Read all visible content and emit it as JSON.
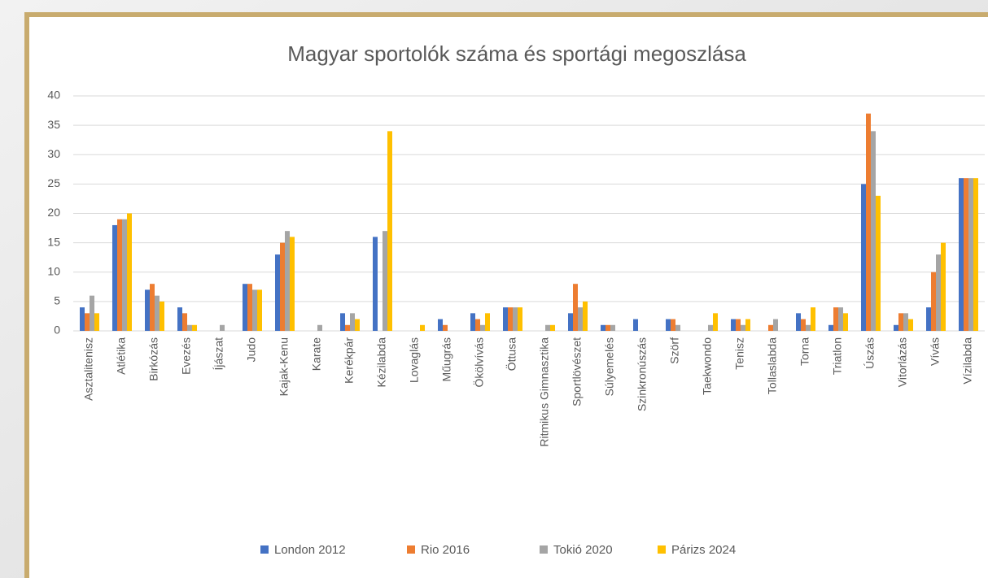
{
  "chart_data": {
    "type": "bar",
    "title": "Magyar sportolók száma és sportági megoszlása",
    "categories": [
      "Asztalitenisz",
      "Atlétika",
      "Birkózás",
      "Evezés",
      "Íjászat",
      "Judo",
      "Kajak-Kenu",
      "Karate",
      "Kerékpár",
      "Kézilabda",
      "Lovaglás",
      "Műugrás",
      "Ökölvívás",
      "Öttusa",
      "Ritmikus Gimnasztika",
      "Sportlövészet",
      "Súlyemelés",
      "Szinkronúszás",
      "Szörf",
      "Taekwondo",
      "Tenisz",
      "Tollaslabda",
      "Torna",
      "Triatlon",
      "Úszás",
      "Vitorlázás",
      "Vívás",
      "Vízilabda"
    ],
    "series": [
      {
        "name": "London 2012",
        "color": "#4472c4",
        "values": [
          4,
          18,
          7,
          4,
          0,
          8,
          13,
          0,
          3,
          16,
          0,
          2,
          3,
          4,
          0,
          3,
          1,
          2,
          2,
          0,
          2,
          0,
          3,
          1,
          25,
          1,
          4,
          26
        ]
      },
      {
        "name": "Rio 2016",
        "color": "#ed7d31",
        "values": [
          3,
          19,
          8,
          3,
          0,
          8,
          15,
          0,
          1,
          0,
          0,
          1,
          2,
          4,
          0,
          8,
          1,
          0,
          2,
          0,
          2,
          1,
          2,
          4,
          37,
          3,
          10,
          26
        ]
      },
      {
        "name": "Tokió 2020",
        "color": "#a5a5a5",
        "values": [
          6,
          19,
          6,
          1,
          1,
          7,
          17,
          1,
          3,
          17,
          0,
          0,
          1,
          4,
          1,
          4,
          1,
          0,
          1,
          1,
          1,
          2,
          1,
          4,
          34,
          3,
          13,
          26
        ]
      },
      {
        "name": "Párizs 2024",
        "color": "#ffc000",
        "values": [
          3,
          20,
          5,
          1,
          0,
          7,
          16,
          0,
          2,
          34,
          1,
          0,
          3,
          4,
          1,
          5,
          0,
          0,
          0,
          3,
          2,
          0,
          4,
          3,
          23,
          2,
          15,
          26
        ]
      }
    ],
    "ylim": [
      0,
      40
    ],
    "yticks": [
      0,
      5,
      10,
      15,
      20,
      25,
      30,
      35,
      40
    ],
    "grid": true,
    "legend": "bottom"
  }
}
